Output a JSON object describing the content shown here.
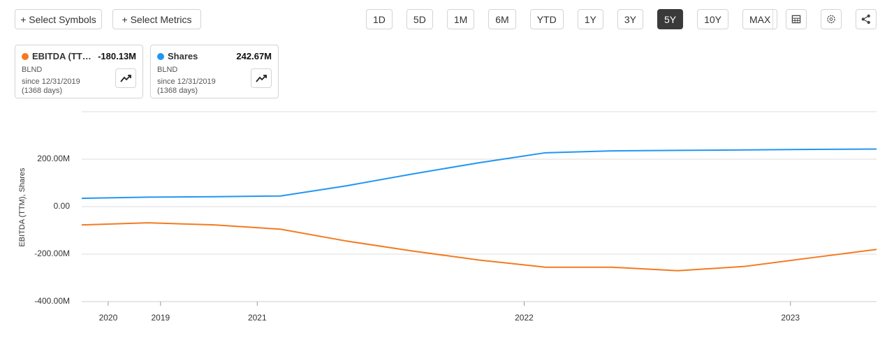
{
  "toolbar": {
    "buttons": [
      "+ Select Symbols",
      "+ Select Metrics"
    ],
    "ranges": [
      "1D",
      "5D",
      "1M",
      "6M",
      "YTD",
      "1Y",
      "3Y",
      "5Y",
      "10Y",
      "MAX"
    ],
    "active_range": "5Y"
  },
  "cards": [
    {
      "value": "-180.13M",
      "ticker": "BLND",
      "since": "since 12/31/2019",
      "days": "(1368 days)"
    },
    {
      "value": "242.67M",
      "ticker": "BLND",
      "since": "since 12/31/2019",
      "days": "(1368 days)"
    }
  ],
  "chart_data": {
    "type": "line",
    "y_label": "EBITDA (TTM), Shares",
    "x": [
      0,
      1,
      2,
      3,
      4,
      5,
      6,
      7,
      8,
      9,
      10,
      11,
      12
    ],
    "xlim": [
      0,
      12
    ],
    "xticks": [
      {
        "value": 0.4,
        "label": "2020"
      },
      {
        "value": 1.19,
        "label": "2019"
      },
      {
        "value": 2.65,
        "label": "2021"
      },
      {
        "value": 6.68,
        "label": "2022"
      },
      {
        "value": 10.7,
        "label": "2023"
      }
    ],
    "ylim": [
      -400,
      400
    ],
    "yticks": [
      {
        "value": -400,
        "label": "-400.00M"
      },
      {
        "value": -200,
        "label": "-200.00M"
      },
      {
        "value": 0,
        "label": "0.00"
      },
      {
        "value": 200,
        "label": "200.00M"
      }
    ],
    "grid": true,
    "series": [
      {
        "name": "EBITDA (TT…",
        "color": "#f47a1f",
        "values": [
          -77,
          -68,
          -77,
          -95,
          -145,
          -187,
          -225,
          -255,
          -255,
          -270,
          -252,
          -216,
          -180.13
        ]
      },
      {
        "name": "Shares",
        "color": "#2196f3",
        "values": [
          35,
          40,
          42,
          45,
          88,
          138,
          185,
          227,
          235,
          237,
          239,
          241,
          242.67
        ]
      }
    ]
  }
}
